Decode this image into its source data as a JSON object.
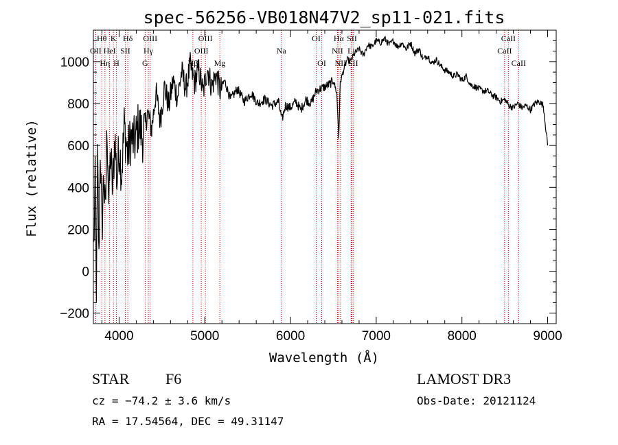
{
  "chart_data": {
    "type": "line",
    "title": "spec-56256-VB018N47V2_sp11-021.fits",
    "xlabel": "Wavelength (Å)",
    "ylabel": "Flux (relative)",
    "xlim": [
      3700,
      9100
    ],
    "ylim": [
      -250,
      1150
    ],
    "xticks": [
      4000,
      5000,
      6000,
      7000,
      8000,
      9000
    ],
    "xtick_labels": [
      "4000",
      "5000",
      "6000",
      "7000",
      "8000",
      "9000"
    ],
    "yticks": [
      -200,
      0,
      200,
      400,
      600,
      800,
      1000
    ],
    "ytick_labels": [
      "−200",
      "0",
      "200",
      "400",
      "600",
      "800",
      "1000"
    ],
    "series": [
      {
        "name": "flux",
        "x": [
          3705,
          3720,
          3735,
          3750,
          3765,
          3780,
          3800,
          3820,
          3840,
          3860,
          3880,
          3900,
          3925,
          3950,
          3975,
          4000,
          4030,
          4060,
          4100,
          4140,
          4180,
          4230,
          4280,
          4330,
          4380,
          4430,
          4480,
          4530,
          4580,
          4630,
          4680,
          4730,
          4780,
          4830,
          4880,
          4930,
          4980,
          5030,
          5080,
          5130,
          5180,
          5230,
          5300,
          5380,
          5460,
          5540,
          5620,
          5700,
          5780,
          5860,
          5900,
          5940,
          6000,
          6060,
          6120,
          6180,
          6240,
          6300,
          6350,
          6400,
          6450,
          6500,
          6540,
          6563,
          6580,
          6620,
          6660,
          6700,
          6750,
          6800,
          6850,
          6900,
          6950,
          7000,
          7050,
          7100,
          7150,
          7200,
          7250,
          7300,
          7350,
          7400,
          7450,
          7500,
          7550,
          7600,
          7650,
          7700,
          7750,
          7800,
          7850,
          7900,
          7950,
          8000,
          8050,
          8100,
          8150,
          8200,
          8250,
          8300,
          8350,
          8400,
          8450,
          8500,
          8550,
          8600,
          8650,
          8700,
          8750,
          8800,
          8850,
          8900,
          8950,
          9000
        ],
        "y": [
          100,
          420,
          -60,
          520,
          30,
          600,
          180,
          470,
          250,
          700,
          320,
          560,
          380,
          650,
          420,
          600,
          470,
          690,
          560,
          640,
          610,
          700,
          640,
          760,
          680,
          850,
          720,
          880,
          790,
          910,
          830,
          950,
          870,
          980,
          900,
          960,
          850,
          970,
          880,
          940,
          860,
          910,
          820,
          870,
          810,
          850,
          800,
          820,
          790,
          810,
          720,
          790,
          780,
          810,
          770,
          820,
          800,
          860,
          870,
          880,
          890,
          910,
          850,
          640,
          900,
          960,
          1010,
          1000,
          1040,
          1060,
          1030,
          1080,
          1070,
          1100,
          1090,
          1110,
          1080,
          1100,
          1070,
          1090,
          1060,
          1090,
          1040,
          1060,
          1010,
          1030,
          990,
          1010,
          980,
          960,
          950,
          930,
          940,
          910,
          930,
          890,
          880,
          870,
          860,
          860,
          840,
          830,
          810,
          820,
          790,
          780,
          800,
          780,
          790,
          770,
          800,
          810,
          790,
          600
        ]
      }
    ],
    "spectral_lines": [
      {
        "label": "Hθ",
        "x": 3798,
        "row": 1
      },
      {
        "label": "OII",
        "x": 3727,
        "row": 2
      },
      {
        "label": "Hη",
        "x": 3835,
        "row": 3
      },
      {
        "label": "K",
        "x": 3934,
        "row": 1
      },
      {
        "label": "HeI",
        "x": 3889,
        "row": 2
      },
      {
        "label": "H",
        "x": 3969,
        "row": 3
      },
      {
        "label": "Hδ",
        "x": 4102,
        "row": 1
      },
      {
        "label": "SII",
        "x": 4072,
        "row": 2
      },
      {
        "label": "OIII",
        "x": 4363,
        "row": 1
      },
      {
        "label": "Hγ",
        "x": 4341,
        "row": 2
      },
      {
        "label": "G",
        "x": 4304,
        "row": 3
      },
      {
        "label": "OIII",
        "x": 5007,
        "row": 1
      },
      {
        "label": "OIII",
        "x": 4959,
        "row": 2
      },
      {
        "label": "Hβ",
        "x": 4861,
        "row": 3
      },
      {
        "label": "Mg",
        "x": 5175,
        "row": 3
      },
      {
        "label": "Na",
        "x": 5893,
        "row": 2
      },
      {
        "label": "OI",
        "x": 6300,
        "row": 1
      },
      {
        "label": "OI",
        "x": 6364,
        "row": 3
      },
      {
        "label": "Hα",
        "x": 6563,
        "row": 1
      },
      {
        "label": "SII",
        "x": 6717,
        "row": 1
      },
      {
        "label": "NII",
        "x": 6548,
        "row": 2
      },
      {
        "label": "Li",
        "x": 6708,
        "row": 2
      },
      {
        "label": "NII",
        "x": 6583,
        "row": 3
      },
      {
        "label": "SII",
        "x": 6731,
        "row": 3
      },
      {
        "label": "CaII",
        "x": 8542,
        "row": 1
      },
      {
        "label": "CaII",
        "x": 8498,
        "row": 2
      },
      {
        "label": "CaII",
        "x": 8662,
        "row": 3
      }
    ]
  },
  "info": {
    "obj_class": "STAR",
    "subclass": "F6",
    "survey": "LAMOST DR3",
    "cz": "cz = −74.2 ± 3.6 km/s",
    "obs_date": "Obs-Date: 20121124",
    "coords": "RA =  17.54564, DEC =  49.31147"
  },
  "colors": {
    "spectrum": "#000000",
    "line_markers": "#cc0000",
    "background": "#ffffff"
  }
}
